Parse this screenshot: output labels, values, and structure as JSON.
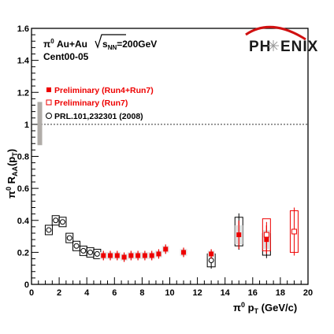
{
  "chart_data": {
    "type": "scatter",
    "title": "",
    "xlabel_main": "π",
    "xlabel_sup": "0",
    "xlabel_rest": " p",
    "xlabel_sub": "T",
    "xlabel_unit": " (GeV/c)",
    "ylabel_main": "π",
    "ylabel_sup": "0",
    "ylabel_rest": " R",
    "ylabel_sub": "AA",
    "ylabel_tail": "(p",
    "ylabel_sub2": "T",
    "ylabel_close": ")",
    "xlim": [
      0,
      20
    ],
    "ylim": [
      0,
      1.6
    ],
    "x_ticks": [
      "0",
      "2",
      "4",
      "6",
      "8",
      "10",
      "12",
      "14",
      "16",
      "18",
      "20"
    ],
    "y_ticks": [
      "0",
      "0.2",
      "0.4",
      "0.6",
      "0.8",
      "1",
      "1.2",
      "1.4",
      "1.6"
    ],
    "reference_line_y": 1,
    "legend_position": "upper-left",
    "series": [
      {
        "name": "Preliminary (Run4+Run7)",
        "marker": "filled-square",
        "color": "#ee0000",
        "points": [
          {
            "x": 5.2,
            "y": 0.18
          },
          {
            "x": 5.7,
            "y": 0.18
          },
          {
            "x": 6.2,
            "y": 0.18
          },
          {
            "x": 6.7,
            "y": 0.17
          },
          {
            "x": 7.2,
            "y": 0.18
          },
          {
            "x": 7.7,
            "y": 0.18
          },
          {
            "x": 8.2,
            "y": 0.18
          },
          {
            "x": 8.7,
            "y": 0.18
          },
          {
            "x": 9.2,
            "y": 0.19
          },
          {
            "x": 9.7,
            "y": 0.22
          },
          {
            "x": 11.0,
            "y": 0.2
          },
          {
            "x": 13.0,
            "y": 0.19
          },
          {
            "x": 15.0,
            "y": 0.31
          },
          {
            "x": 17.0,
            "y": 0.28
          }
        ]
      },
      {
        "name": "Preliminary (Run7)",
        "marker": "open-square",
        "color": "#ee0000",
        "points": [
          {
            "x": 17.0,
            "y": 0.31,
            "err": 0.08,
            "box": 0.1
          },
          {
            "x": 19.0,
            "y": 0.33,
            "err": 0.15,
            "box": 0.13
          }
        ]
      },
      {
        "name": "PRL.101,232301 (2008)",
        "marker": "open-circle",
        "color": "#000000",
        "points": [
          {
            "x": 1.25,
            "y": 0.34
          },
          {
            "x": 1.75,
            "y": 0.4
          },
          {
            "x": 2.25,
            "y": 0.39
          },
          {
            "x": 2.75,
            "y": 0.29
          },
          {
            "x": 3.25,
            "y": 0.24
          },
          {
            "x": 3.75,
            "y": 0.21
          },
          {
            "x": 4.25,
            "y": 0.2
          },
          {
            "x": 4.75,
            "y": 0.19
          },
          {
            "x": 13.0,
            "y": 0.15
          },
          {
            "x": 15.0,
            "y": 0.33
          },
          {
            "x": 17.0,
            "y": 0.25
          }
        ]
      }
    ],
    "normalization_band": {
      "x": 0.6,
      "ylow": 0.87,
      "yhigh": 1.14,
      "color": "#b0aca8"
    },
    "annotations": {
      "system_line1_a": "π",
      "system_line1_sup": "0",
      "system_line1_b": " Au+Au",
      "system_sqrt": "s",
      "system_sub": "NN",
      "system_energy": "=200GeV",
      "centrality": "Cent00-05"
    },
    "logo": {
      "left": "PH",
      "right": "ENIX"
    }
  }
}
